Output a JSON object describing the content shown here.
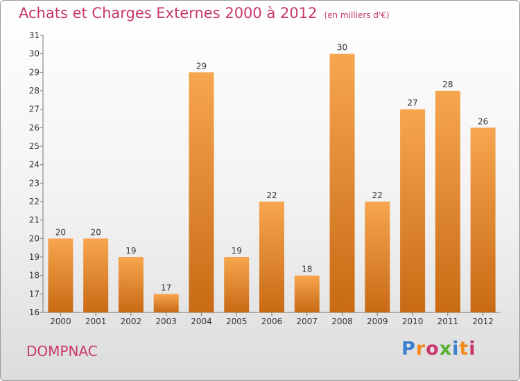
{
  "header": {
    "title": "Achats et Charges Externes 2000 à 2012",
    "unit": "(en milliers d'€)"
  },
  "location": "DOMPNAC",
  "brand": {
    "name": "Proxiti",
    "letter_colors": [
      "#3a7fd0",
      "#f08a1c",
      "#c8366e",
      "#58b030",
      "#3a7fd0",
      "#f08a1c",
      "#c8366e"
    ]
  },
  "colors": {
    "bar_light": "#f7a64f",
    "bar_dark": "#c86a14",
    "title": "#c8366e"
  },
  "chart_data": {
    "type": "bar",
    "title": "Achats et Charges Externes 2000 à 2012",
    "subtitle": "(en milliers d'€)",
    "categories": [
      "2000",
      "2001",
      "2002",
      "2003",
      "2004",
      "2005",
      "2006",
      "2007",
      "2008",
      "2009",
      "2010",
      "2011",
      "2012"
    ],
    "values": [
      20,
      20,
      19,
      17,
      29,
      19,
      22,
      18,
      30,
      22,
      27,
      28,
      26
    ],
    "ylim": [
      16,
      31
    ],
    "yticks": [
      16,
      17,
      18,
      19,
      20,
      21,
      22,
      23,
      24,
      25,
      26,
      27,
      28,
      29,
      30,
      31
    ],
    "grid": false,
    "data_labels": true
  }
}
